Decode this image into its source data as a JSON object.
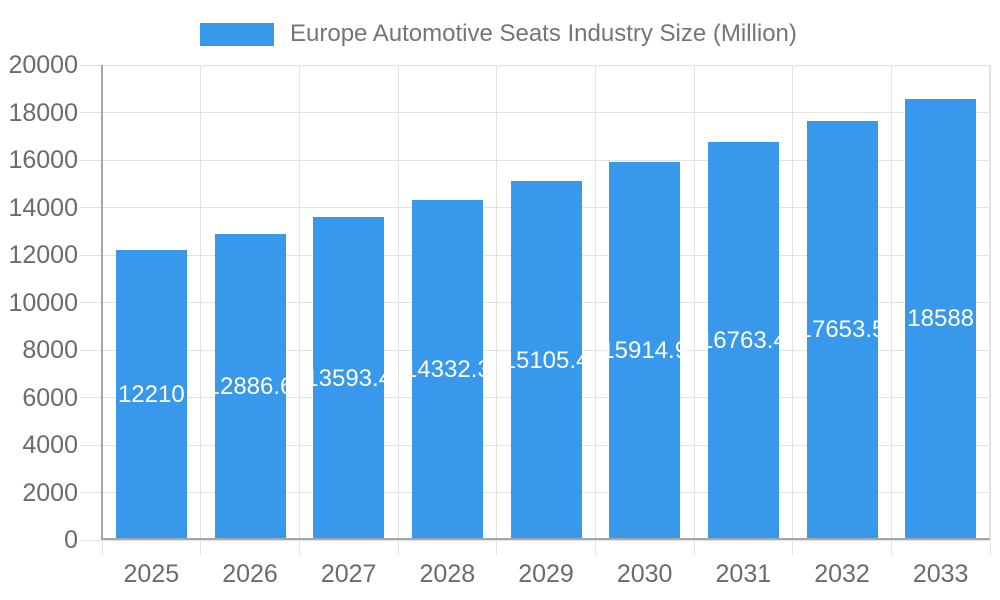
{
  "chart_data": {
    "type": "bar",
    "title": "Europe Automotive Seats Industry Size (Million)",
    "legend_position": "top",
    "categories": [
      "2025",
      "2026",
      "2027",
      "2028",
      "2029",
      "2030",
      "2031",
      "2032",
      "2033"
    ],
    "values": [
      12210,
      12886.6,
      13593.4,
      14332.3,
      15105.4,
      15914.9,
      16763.4,
      17653.5,
      18588
    ],
    "xlabel": "",
    "ylabel": "",
    "ylim": [
      0,
      20000
    ],
    "yticks": [
      0,
      2000,
      4000,
      6000,
      8000,
      10000,
      12000,
      14000,
      16000,
      18000,
      20000
    ],
    "grid": true,
    "bar_color": "#3898EC",
    "bar_label_color": "#FFFFFF",
    "colors": {
      "title_text": "#757575",
      "tick_label": "#6B6B6B",
      "gridline": "#E3E3E3",
      "axis_line": "#A6A6A6",
      "background": "#FFFFFF"
    }
  }
}
